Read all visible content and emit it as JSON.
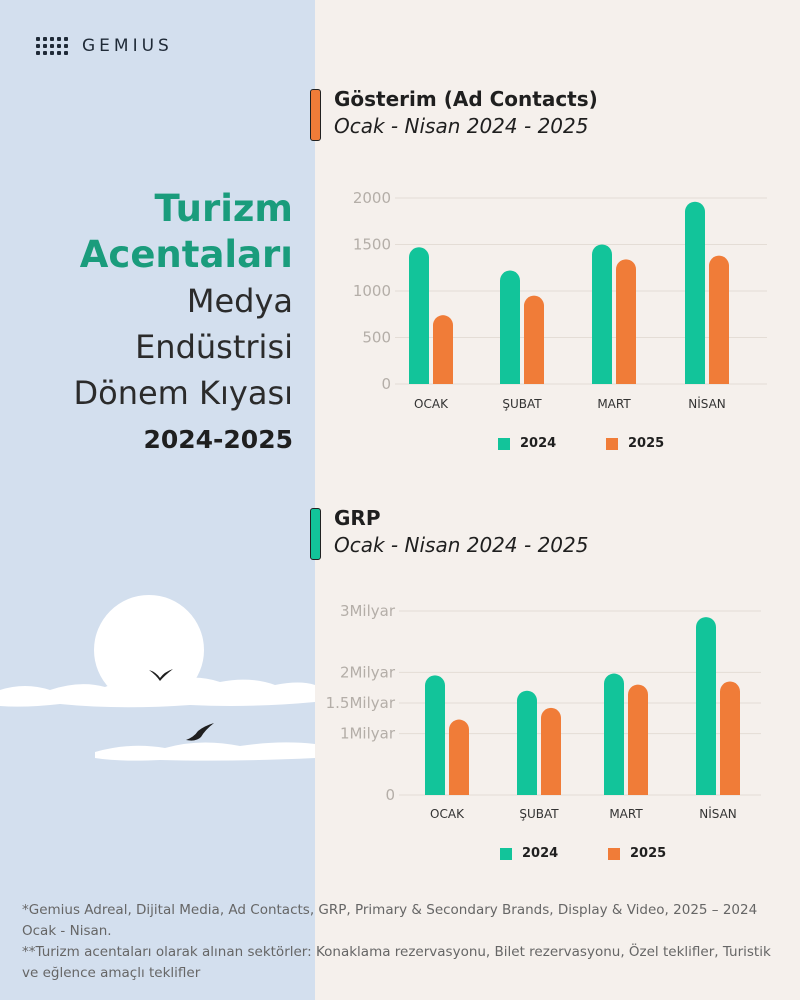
{
  "brand": {
    "name": "GEMIUS"
  },
  "hero": {
    "title_line1": "Turizm",
    "title_line2": "Acentaları",
    "subtitle_line1": "Medya",
    "subtitle_line2": "Endüstrisi",
    "subtitle_line3": "Dönem Kıyası",
    "years": "2024-2025"
  },
  "colors": {
    "series_2024": "#12c49a",
    "series_2025": "#f07c38",
    "brand_green": "#1a9c7c"
  },
  "sections": [
    {
      "title": "Gösterim (Ad Contacts)",
      "period": "Ocak - Nisan 2024 - 2025",
      "accent_color": "#f07c38"
    },
    {
      "title": "GRP",
      "period": "Ocak - Nisan 2024 - 2025",
      "accent_color": "#12c49a"
    }
  ],
  "chart_data": [
    {
      "type": "bar",
      "title": "Gösterim (Ad Contacts)",
      "categories": [
        "OCAK",
        "ŞUBAT",
        "MART",
        "NİSAN"
      ],
      "series": [
        {
          "name": "2024",
          "values": [
            1470,
            1220,
            1500,
            1960
          ]
        },
        {
          "name": "2025",
          "values": [
            740,
            950,
            1340,
            1380
          ]
        }
      ],
      "ylim": [
        0,
        2000
      ],
      "yticks": [
        0,
        500,
        1000,
        1500,
        2000
      ],
      "ytick_labels": [
        "0",
        "500",
        "1000",
        "1500",
        "2000"
      ],
      "grid": true,
      "legend": "bottom"
    },
    {
      "type": "bar",
      "title": "GRP",
      "categories": [
        "OCAK",
        "ŞUBAT",
        "MART",
        "NİSAN"
      ],
      "series": [
        {
          "name": "2024",
          "values": [
            1.95,
            1.7,
            1.98,
            2.9
          ]
        },
        {
          "name": "2025",
          "values": [
            1.23,
            1.42,
            1.8,
            1.85
          ]
        }
      ],
      "ylim": [
        0,
        3
      ],
      "yticks": [
        0,
        1,
        1.5,
        2,
        3
      ],
      "ytick_labels": [
        "0",
        "1Milyar",
        "1.5Milyar",
        "2Milyar",
        "3Milyar"
      ],
      "grid": true,
      "legend": "bottom"
    }
  ],
  "footnotes": [
    "*Gemius Adreal, Dijital Media, Ad Contacts, GRP, Primary & Secondary Brands, Display & Video, 2025 – 2024 Ocak - Nisan.",
    "**Turizm acentaları olarak alınan sektörler: Konaklama rezervasyonu, Bilet rezervasyonu, Özel teklifler, Turistik ve eğlence amaçlı teklifler"
  ]
}
